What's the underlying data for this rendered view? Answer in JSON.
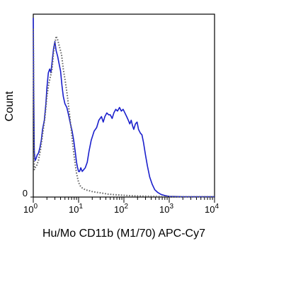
{
  "chart_data": {
    "type": "line",
    "title": "",
    "xlabel": "Hu/Mo CD11b (M1/70) APC-Cy7",
    "ylabel": "Count",
    "x_scale": "log",
    "xlim": [
      1,
      10000
    ],
    "ylim": [
      0,
      100
    ],
    "grid": false,
    "legend": "none",
    "x_ticks": [
      {
        "value": 1,
        "base": "10",
        "exp": "0"
      },
      {
        "value": 10,
        "base": "10",
        "exp": "1"
      },
      {
        "value": 100,
        "base": "10",
        "exp": "2"
      },
      {
        "value": 1000,
        "base": "10",
        "exp": "3"
      },
      {
        "value": 10000,
        "base": "10",
        "exp": "4"
      }
    ],
    "y_ticks": [
      {
        "value": 0,
        "label": "0"
      }
    ],
    "series": [
      {
        "style": "solid",
        "color": "#1a1fcc",
        "points": [
          [
            1.0,
            98
          ],
          [
            1.02,
            56
          ],
          [
            1.05,
            25
          ],
          [
            1.1,
            20
          ],
          [
            1.15,
            21
          ],
          [
            1.22,
            23
          ],
          [
            1.3,
            24
          ],
          [
            1.4,
            27
          ],
          [
            1.5,
            31
          ],
          [
            1.6,
            37
          ],
          [
            1.75,
            42
          ],
          [
            1.9,
            51
          ],
          [
            2.0,
            60
          ],
          [
            2.15,
            68
          ],
          [
            2.3,
            70
          ],
          [
            2.45,
            68
          ],
          [
            2.6,
            74
          ],
          [
            2.8,
            81
          ],
          [
            3.0,
            85
          ],
          [
            3.2,
            80
          ],
          [
            3.45,
            77
          ],
          [
            3.7,
            73
          ],
          [
            4.0,
            69
          ],
          [
            4.3,
            61
          ],
          [
            4.6,
            55
          ],
          [
            5.0,
            51
          ],
          [
            5.5,
            49
          ],
          [
            6.0,
            45
          ],
          [
            6.6,
            40
          ],
          [
            7.2,
            36
          ],
          [
            7.8,
            31
          ],
          [
            8.4,
            25
          ],
          [
            9.0,
            19
          ],
          [
            9.5,
            16
          ],
          [
            10.0,
            14
          ],
          [
            10.5,
            14
          ],
          [
            11.2,
            16
          ],
          [
            12.0,
            14
          ],
          [
            13.0,
            15
          ],
          [
            14.0,
            16
          ],
          [
            15.5,
            19
          ],
          [
            17.0,
            25
          ],
          [
            19.0,
            31
          ],
          [
            22.0,
            36
          ],
          [
            25.0,
            38
          ],
          [
            28.0,
            42
          ],
          [
            32.0,
            44
          ],
          [
            35.0,
            41
          ],
          [
            38.0,
            44
          ],
          [
            42.0,
            46
          ],
          [
            46.0,
            45
          ],
          [
            50.0,
            45
          ],
          [
            55.0,
            43
          ],
          [
            60.0,
            46
          ],
          [
            66.0,
            48
          ],
          [
            72.0,
            47
          ],
          [
            80.0,
            49
          ],
          [
            88.0,
            47
          ],
          [
            96.0,
            48
          ],
          [
            105.0,
            46
          ],
          [
            115.0,
            44
          ],
          [
            125.0,
            42
          ],
          [
            135.0,
            40
          ],
          [
            145.0,
            42
          ],
          [
            155.0,
            39
          ],
          [
            165.0,
            37
          ],
          [
            180.0,
            40
          ],
          [
            195.0,
            41
          ],
          [
            210.0,
            37
          ],
          [
            230.0,
            35
          ],
          [
            250.0,
            34
          ],
          [
            270.0,
            30
          ],
          [
            300.0,
            23
          ],
          [
            330.0,
            17
          ],
          [
            370.0,
            11
          ],
          [
            420.0,
            7
          ],
          [
            480.0,
            4
          ],
          [
            560.0,
            2.5
          ],
          [
            650.0,
            1.5
          ],
          [
            800.0,
            0.8
          ],
          [
            1000.0,
            0.4
          ],
          [
            2000.0,
            0.2
          ],
          [
            10000.0,
            0.2
          ]
        ]
      },
      {
        "style": "dotted",
        "color": "#666666",
        "points": [
          [
            1.0,
            92
          ],
          [
            1.02,
            60
          ],
          [
            1.05,
            15
          ],
          [
            1.1,
            16
          ],
          [
            1.18,
            17
          ],
          [
            1.3,
            20
          ],
          [
            1.45,
            26
          ],
          [
            1.6,
            34
          ],
          [
            1.8,
            43
          ],
          [
            2.0,
            55
          ],
          [
            2.2,
            62
          ],
          [
            2.4,
            66
          ],
          [
            2.6,
            70
          ],
          [
            2.8,
            79
          ],
          [
            3.0,
            84
          ],
          [
            3.2,
            88
          ],
          [
            3.45,
            86
          ],
          [
            3.8,
            82
          ],
          [
            4.2,
            78
          ],
          [
            4.6,
            70
          ],
          [
            5.1,
            63
          ],
          [
            5.6,
            56
          ],
          [
            6.2,
            47
          ],
          [
            6.8,
            38
          ],
          [
            7.5,
            28
          ],
          [
            8.2,
            20
          ],
          [
            9.0,
            13
          ],
          [
            10.0,
            8
          ],
          [
            11.0,
            6
          ],
          [
            12.0,
            5
          ],
          [
            14.0,
            4
          ],
          [
            17.0,
            3.5
          ],
          [
            20.0,
            3
          ],
          [
            25.0,
            2.6
          ],
          [
            32.0,
            2.2
          ],
          [
            45.0,
            1.6
          ],
          [
            70.0,
            1.2
          ],
          [
            120.0,
            0.8
          ],
          [
            250.0,
            0.5
          ],
          [
            600.0,
            0.3
          ],
          [
            2000.0,
            0.2
          ],
          [
            10000.0,
            0.2
          ]
        ]
      }
    ]
  }
}
